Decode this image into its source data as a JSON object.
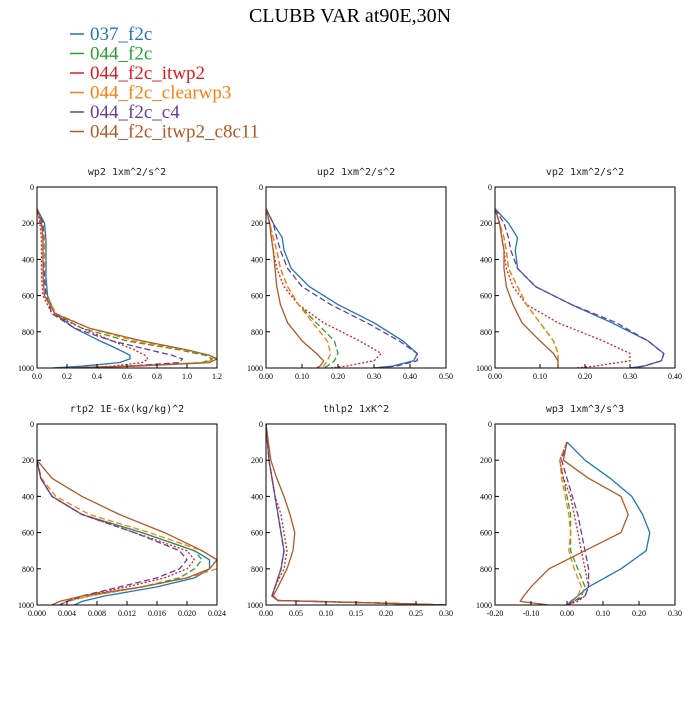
{
  "title": "CLUBB VAR at90E,30N",
  "legend": [
    {
      "name": "037_f2c",
      "color": "#1f77b4",
      "dash": "solid"
    },
    {
      "name": "044_f2c",
      "color": "#2ca02c",
      "dash": "dash"
    },
    {
      "name": "044_f2c_itwp2",
      "color": "#e31a1c",
      "dash": "dot"
    },
    {
      "name": "044_f2c_clearwp3",
      "color": "#ff7f0e",
      "dash": "dash"
    },
    {
      "name": "044_f2c_c4",
      "color": "#6a3d9a",
      "dash": "dash"
    },
    {
      "name": "044_f2c_itwp2_c8c11",
      "color": "#b15928",
      "dash": "solid"
    }
  ],
  "chart_data": [
    {
      "type": "line",
      "title": "wp2  1xm^2/s^2",
      "xlim": [
        0,
        1.2
      ],
      "xticks": [
        "0.0",
        "0.2",
        "0.4",
        "0.6",
        "0.8",
        "1.0",
        "1.2"
      ],
      "ylim": [
        1000,
        0
      ],
      "yticks": [
        "0",
        "200",
        "400",
        "600",
        "800",
        "1000"
      ],
      "y": [
        120,
        200,
        300,
        400,
        500,
        600,
        700,
        780,
        850,
        900,
        930,
        950,
        970,
        990,
        1000
      ],
      "series": [
        {
          "name": "037_f2c",
          "values": [
            0.0,
            0.05,
            0.06,
            0.06,
            0.06,
            0.07,
            0.12,
            0.25,
            0.42,
            0.55,
            0.62,
            0.62,
            0.55,
            0.3,
            0.1
          ]
        },
        {
          "name": "044_f2c",
          "values": [
            0.0,
            0.04,
            0.05,
            0.05,
            0.05,
            0.06,
            0.12,
            0.3,
            0.6,
            0.95,
            1.12,
            1.17,
            1.1,
            0.6,
            0.2
          ]
        },
        {
          "name": "044_f2c_itwp2",
          "values": [
            0.0,
            0.02,
            0.03,
            0.03,
            0.03,
            0.04,
            0.1,
            0.3,
            0.5,
            0.65,
            0.72,
            0.74,
            0.7,
            0.5,
            0.2
          ]
        },
        {
          "name": "044_f2c_clearwp3",
          "values": [
            0.0,
            0.04,
            0.05,
            0.05,
            0.05,
            0.06,
            0.13,
            0.35,
            0.65,
            0.98,
            1.15,
            1.19,
            1.12,
            0.6,
            0.2
          ]
        },
        {
          "name": "044_f2c_c4",
          "values": [
            0.0,
            0.04,
            0.04,
            0.04,
            0.05,
            0.06,
            0.1,
            0.25,
            0.5,
            0.75,
            0.9,
            0.97,
            0.95,
            0.6,
            0.2
          ]
        },
        {
          "name": "044_f2c_itwp2_c8c11",
          "values": [
            0.0,
            0.03,
            0.04,
            0.04,
            0.04,
            0.05,
            0.12,
            0.35,
            0.7,
            1.0,
            1.15,
            1.2,
            1.15,
            0.65,
            0.2
          ]
        }
      ]
    },
    {
      "type": "line",
      "title": "up2  1xm^2/s^2",
      "xlim": [
        0,
        0.5
      ],
      "xticks": [
        "0.00",
        "0.10",
        "0.20",
        "0.30",
        "0.40",
        "0.50"
      ],
      "ylim": [
        1000,
        0
      ],
      "yticks": [
        "0",
        "200",
        "400",
        "600",
        "800",
        "1000"
      ],
      "y": [
        120,
        200,
        280,
        350,
        450,
        550,
        650,
        750,
        850,
        920,
        960,
        990,
        1000
      ],
      "series": [
        {
          "name": "037_f2c",
          "values": [
            0.0,
            0.02,
            0.045,
            0.05,
            0.07,
            0.12,
            0.2,
            0.3,
            0.38,
            0.42,
            0.41,
            0.35,
            0.3
          ]
        },
        {
          "name": "044_f2c",
          "values": [
            0.0,
            0.01,
            0.02,
            0.03,
            0.04,
            0.06,
            0.09,
            0.14,
            0.19,
            0.2,
            0.19,
            0.17,
            0.16
          ]
        },
        {
          "name": "044_f2c_itwp2",
          "values": [
            0.0,
            0.01,
            0.015,
            0.02,
            0.03,
            0.05,
            0.09,
            0.16,
            0.26,
            0.32,
            0.3,
            0.22,
            0.18
          ]
        },
        {
          "name": "044_f2c_clearwp3",
          "values": [
            0.0,
            0.01,
            0.02,
            0.03,
            0.04,
            0.06,
            0.09,
            0.13,
            0.17,
            0.18,
            0.17,
            0.16,
            0.15
          ]
        },
        {
          "name": "044_f2c_c4",
          "values": [
            0.0,
            0.02,
            0.03,
            0.04,
            0.06,
            0.1,
            0.18,
            0.28,
            0.37,
            0.42,
            0.42,
            0.36,
            0.3
          ]
        },
        {
          "name": "044_f2c_itwp2_c8c11",
          "values": [
            0.0,
            0.01,
            0.015,
            0.02,
            0.025,
            0.03,
            0.04,
            0.06,
            0.1,
            0.14,
            0.16,
            0.15,
            0.14
          ]
        }
      ]
    },
    {
      "type": "line",
      "title": "vp2  1xm^2/s^2",
      "xlim": [
        0,
        0.4
      ],
      "xticks": [
        "0.00",
        "0.10",
        "0.20",
        "0.30",
        "0.40"
      ],
      "ylim": [
        1000,
        0
      ],
      "yticks": [
        "0",
        "200",
        "400",
        "600",
        "800",
        "1000"
      ],
      "y": [
        120,
        200,
        280,
        350,
        450,
        550,
        650,
        750,
        850,
        920,
        960,
        990,
        1000
      ],
      "series": [
        {
          "name": "037_f2c",
          "values": [
            0.0,
            0.03,
            0.05,
            0.045,
            0.05,
            0.09,
            0.17,
            0.26,
            0.34,
            0.375,
            0.37,
            0.33,
            0.3
          ]
        },
        {
          "name": "044_f2c",
          "values": [
            0.0,
            0.01,
            0.02,
            0.025,
            0.03,
            0.05,
            0.07,
            0.1,
            0.13,
            0.14,
            0.14,
            0.14,
            0.14
          ]
        },
        {
          "name": "044_f2c_itwp2",
          "values": [
            0.0,
            0.01,
            0.015,
            0.02,
            0.025,
            0.04,
            0.07,
            0.14,
            0.24,
            0.3,
            0.3,
            0.22,
            0.18
          ]
        },
        {
          "name": "044_f2c_clearwp3",
          "values": [
            0.0,
            0.01,
            0.02,
            0.025,
            0.03,
            0.05,
            0.07,
            0.1,
            0.13,
            0.14,
            0.14,
            0.14,
            0.14
          ]
        },
        {
          "name": "044_f2c_c4",
          "values": [
            0.0,
            0.02,
            0.03,
            0.035,
            0.05,
            0.09,
            0.17,
            0.27,
            0.34,
            0.375,
            0.37,
            0.33,
            0.3
          ]
        },
        {
          "name": "044_f2c_itwp2_c8c11",
          "values": [
            0.0,
            0.01,
            0.015,
            0.02,
            0.02,
            0.025,
            0.04,
            0.06,
            0.1,
            0.13,
            0.14,
            0.14,
            0.14
          ]
        }
      ]
    },
    {
      "type": "line",
      "title": "rtp2  1E-6x(kg/kg)^2",
      "xlim": [
        0,
        0.024
      ],
      "xticks": [
        "0.000",
        "0.004",
        "0.008",
        "0.012",
        "0.016",
        "0.020",
        "0.024"
      ],
      "ylim": [
        1000,
        0
      ],
      "yticks": [
        "0",
        "200",
        "400",
        "600",
        "800",
        "1000"
      ],
      "y": [
        200,
        300,
        400,
        500,
        600,
        700,
        750,
        800,
        850,
        900,
        950,
        980,
        1000
      ],
      "series": [
        {
          "name": "037_f2c",
          "values": [
            0.0,
            0.0005,
            0.002,
            0.006,
            0.014,
            0.021,
            0.023,
            0.023,
            0.021,
            0.016,
            0.009,
            0.006,
            0.005
          ]
        },
        {
          "name": "044_f2c",
          "values": [
            0.0,
            0.0005,
            0.002,
            0.006,
            0.014,
            0.021,
            0.022,
            0.021,
            0.019,
            0.014,
            0.007,
            0.004,
            0.003
          ]
        },
        {
          "name": "044_f2c_itwp2",
          "values": [
            0.0,
            0.0005,
            0.002,
            0.006,
            0.013,
            0.02,
            0.021,
            0.02,
            0.017,
            0.012,
            0.006,
            0.004,
            0.003
          ]
        },
        {
          "name": "044_f2c_clearwp3",
          "values": [
            0.0,
            0.0006,
            0.0025,
            0.007,
            0.015,
            0.022,
            0.024,
            0.024,
            0.02,
            0.014,
            0.007,
            0.004,
            0.003
          ]
        },
        {
          "name": "044_f2c_c4",
          "values": [
            0.0,
            0.0005,
            0.002,
            0.006,
            0.013,
            0.019,
            0.02,
            0.019,
            0.016,
            0.011,
            0.006,
            0.004,
            0.003
          ]
        },
        {
          "name": "044_f2c_itwp2_c8c11",
          "values": [
            0.0,
            0.002,
            0.006,
            0.011,
            0.017,
            0.022,
            0.024,
            0.023,
            0.02,
            0.014,
            0.006,
            0.003,
            0.002
          ]
        }
      ]
    },
    {
      "type": "line",
      "title": "thlp2  1xK^2",
      "xlim": [
        0,
        0.3
      ],
      "xticks": [
        "0.00",
        "0.05",
        "0.10",
        "0.15",
        "0.20",
        "0.25",
        "0.30"
      ],
      "ylim": [
        1000,
        0
      ],
      "yticks": [
        "0",
        "200",
        "400",
        "600",
        "800",
        "1000"
      ],
      "y": [
        0,
        200,
        300,
        400,
        500,
        600,
        700,
        800,
        900,
        950,
        975,
        990,
        1000
      ],
      "series": [
        {
          "name": "037_f2c",
          "values": [
            0.0,
            0.005,
            0.01,
            0.015,
            0.02,
            0.025,
            0.03,
            0.025,
            0.015,
            0.01,
            0.02,
            0.2,
            0.3
          ]
        },
        {
          "name": "044_f2c",
          "values": [
            0.0,
            0.005,
            0.01,
            0.015,
            0.02,
            0.025,
            0.03,
            0.025,
            0.015,
            0.01,
            0.02,
            0.2,
            0.3
          ]
        },
        {
          "name": "044_f2c_itwp2",
          "values": [
            0.0,
            0.005,
            0.01,
            0.015,
            0.025,
            0.03,
            0.035,
            0.03,
            0.015,
            0.01,
            0.02,
            0.2,
            0.3
          ]
        },
        {
          "name": "044_f2c_clearwp3",
          "values": [
            0.0,
            0.005,
            0.01,
            0.015,
            0.02,
            0.025,
            0.03,
            0.025,
            0.015,
            0.01,
            0.02,
            0.2,
            0.3
          ]
        },
        {
          "name": "044_f2c_c4",
          "values": [
            0.0,
            0.005,
            0.01,
            0.015,
            0.02,
            0.025,
            0.03,
            0.025,
            0.015,
            0.01,
            0.02,
            0.2,
            0.3
          ]
        },
        {
          "name": "044_f2c_itwp2_c8c11",
          "values": [
            0.0,
            0.008,
            0.018,
            0.03,
            0.04,
            0.048,
            0.045,
            0.035,
            0.02,
            0.012,
            0.02,
            0.2,
            0.3
          ]
        }
      ]
    },
    {
      "type": "line",
      "title": "wp3  1xm^3/s^3",
      "xlim": [
        -0.2,
        0.3
      ],
      "xticks": [
        "-0.20",
        "-0.10",
        "0.00",
        "0.10",
        "0.20",
        "0.30"
      ],
      "ylim": [
        1000,
        0
      ],
      "yticks": [
        "0",
        "200",
        "400",
        "600",
        "800",
        "1000"
      ],
      "y": [
        100,
        200,
        300,
        400,
        500,
        600,
        700,
        800,
        900,
        950,
        980,
        1000
      ],
      "series": [
        {
          "name": "037_f2c",
          "values": [
            0.0,
            0.05,
            0.12,
            0.18,
            0.21,
            0.23,
            0.22,
            0.15,
            0.06,
            0.03,
            0.01,
            0.0
          ]
        },
        {
          "name": "044_f2c",
          "values": [
            0.0,
            -0.02,
            -0.01,
            0.0,
            0.01,
            0.01,
            0.01,
            0.03,
            0.05,
            0.04,
            0.02,
            0.0
          ]
        },
        {
          "name": "044_f2c_itwp2",
          "values": [
            0.0,
            -0.02,
            -0.01,
            0.01,
            0.02,
            0.03,
            0.04,
            0.05,
            0.06,
            0.05,
            0.03,
            0.0
          ]
        },
        {
          "name": "044_f2c_clearwp3",
          "values": [
            0.0,
            -0.02,
            -0.015,
            -0.005,
            0.005,
            0.01,
            0.005,
            0.02,
            0.04,
            0.03,
            0.015,
            0.0
          ]
        },
        {
          "name": "044_f2c_c4",
          "values": [
            0.0,
            -0.015,
            0.0,
            0.015,
            0.03,
            0.04,
            0.05,
            0.06,
            0.06,
            0.05,
            0.02,
            0.0
          ]
        },
        {
          "name": "044_f2c_itwp2_c8c11",
          "values": [
            0.0,
            -0.01,
            0.06,
            0.15,
            0.17,
            0.15,
            0.05,
            -0.05,
            -0.1,
            -0.12,
            -0.13,
            -0.05
          ]
        }
      ]
    }
  ]
}
